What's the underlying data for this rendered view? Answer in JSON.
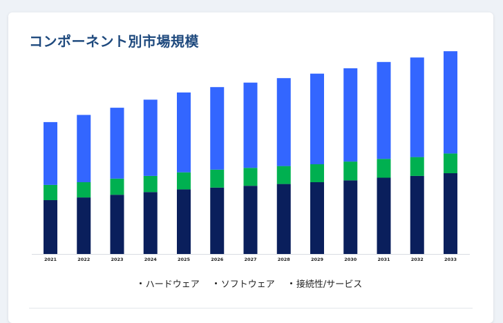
{
  "title": "コンポーネント別市場規模",
  "chart_data": {
    "type": "bar",
    "stacked": true,
    "categories": [
      "2021",
      "2022",
      "2023",
      "2024",
      "2025",
      "2026",
      "2027",
      "2028",
      "2029",
      "2030",
      "2031",
      "2032",
      "2033"
    ],
    "series": [
      {
        "name": "ハードウェア",
        "color": "#0a1f5c",
        "values": [
          60,
          63,
          66,
          69,
          72,
          74,
          76,
          78,
          80,
          82,
          85,
          87,
          90
        ]
      },
      {
        "name": "ソフトウェア",
        "color": "#00b050",
        "values": [
          17,
          17,
          18,
          18,
          19,
          20,
          20,
          20,
          20,
          21,
          21,
          21,
          22
        ]
      },
      {
        "name": "接続性/サービス",
        "color": "#3366ff",
        "values": [
          70,
          75,
          79,
          85,
          89,
          92,
          95,
          98,
          101,
          104,
          108,
          111,
          114
        ]
      }
    ],
    "legend_position": "bottom",
    "y_axis_visible": false,
    "grid": false
  }
}
